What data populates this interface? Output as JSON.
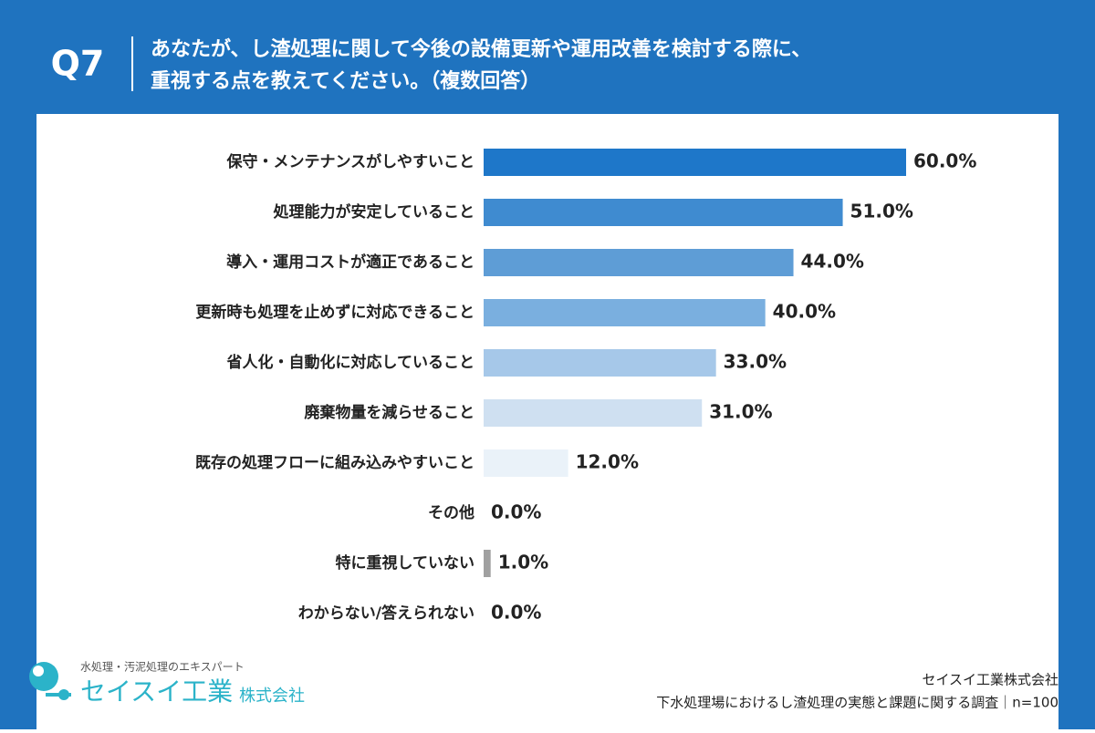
{
  "header": {
    "question": "Q7",
    "title_lines": [
      "あなたが、し渣処理に関して今後の設備更新や運用改善を検討する際に、",
      "重視する点を教えてください。（複数回答）"
    ]
  },
  "chart_data": {
    "type": "bar",
    "orientation": "horizontal",
    "categories": [
      "保守・メンテナンスがしやすいこと",
      "処理能力が安定していること",
      "導入・運用コストが適正であること",
      "更新時も処理を止めずに対応できること",
      "省人化・自動化に対応していること",
      "廃棄物量を減らせること",
      "既存の処理フローに組み込みやすいこと",
      "その他",
      "特に重視していない",
      "わからない/答えられない"
    ],
    "values": [
      60,
      51,
      44,
      40,
      33,
      31,
      12,
      0,
      1,
      0
    ],
    "value_labels": [
      "60.0%",
      "51.0%",
      "44.0%",
      "40.0%",
      "33.0%",
      "31.0%",
      "12.0%",
      "0.0%",
      "1.0%",
      "0.0%"
    ],
    "colors": [
      "#1e77c9",
      "#3f8bd0",
      "#5e9dd6",
      "#7aafdf",
      "#a6c8e9",
      "#cfe0f1",
      "#eaf2f9",
      "#d0d0d0",
      "#a0a0a0",
      "#d0d0d0"
    ]
  },
  "footer": {
    "logo_tagline": "水処理・汚泥処理のエキスパート",
    "logo_name": "セイスイ工業",
    "logo_suffix": "株式会社",
    "company": "セイスイ工業株式会社",
    "survey": "下水処理場におけるし渣処理の実態と課題に関する調査｜n=100"
  }
}
